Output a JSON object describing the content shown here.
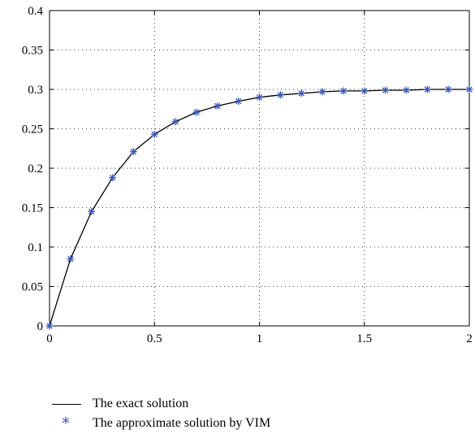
{
  "chart_data": {
    "type": "line",
    "title": "",
    "xlabel": "",
    "ylabel": "",
    "xlim": [
      0,
      2
    ],
    "ylim": [
      0,
      0.4
    ],
    "grid": true,
    "legend_position": "bottom",
    "x_ticks": [
      "0",
      "0.5",
      "1",
      "1.5",
      "2"
    ],
    "y_ticks": [
      "0",
      "0.05",
      "0.1",
      "0.15",
      "0.2",
      "0.25",
      "0.3",
      "0.35",
      "0.4"
    ],
    "series": [
      {
        "name": "The exact solution",
        "style": "line",
        "color": "#000000",
        "x": [
          0,
          0.1,
          0.2,
          0.3,
          0.4,
          0.5,
          0.6,
          0.7,
          0.8,
          0.9,
          1.0,
          1.1,
          1.2,
          1.3,
          1.4,
          1.5,
          1.6,
          1.7,
          1.8,
          1.9,
          2.0
        ],
        "y": [
          0,
          0.085,
          0.145,
          0.188,
          0.221,
          0.243,
          0.259,
          0.271,
          0.279,
          0.285,
          0.29,
          0.293,
          0.295,
          0.297,
          0.298,
          0.298,
          0.299,
          0.299,
          0.3,
          0.3,
          0.3
        ]
      },
      {
        "name": "The approximate solution by VIM",
        "style": "marker",
        "marker": "*",
        "color": "#3b5bb8",
        "x": [
          0,
          0.1,
          0.2,
          0.3,
          0.4,
          0.5,
          0.6,
          0.7,
          0.8,
          0.9,
          1.0,
          1.1,
          1.2,
          1.3,
          1.4,
          1.5,
          1.6,
          1.7,
          1.8,
          1.9,
          2.0
        ],
        "y": [
          0,
          0.085,
          0.145,
          0.188,
          0.221,
          0.243,
          0.259,
          0.271,
          0.279,
          0.285,
          0.29,
          0.293,
          0.295,
          0.297,
          0.298,
          0.298,
          0.299,
          0.299,
          0.3,
          0.3,
          0.3
        ]
      }
    ]
  }
}
